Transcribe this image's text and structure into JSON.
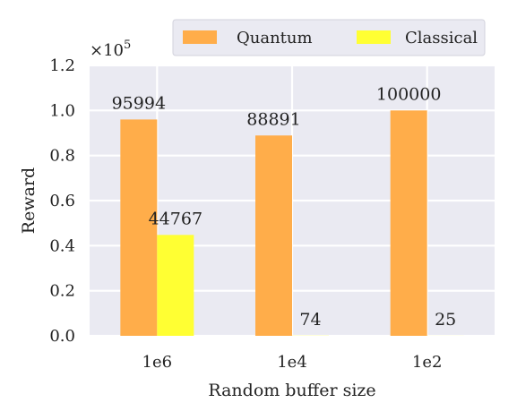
{
  "chart_data": {
    "type": "bar",
    "categories": [
      "1e6",
      "1e4",
      "1e2"
    ],
    "series": [
      {
        "name": "Quantum",
        "values": [
          95994,
          88891,
          100000
        ],
        "color": "#ffad4a"
      },
      {
        "name": "Classical",
        "values": [
          44767,
          74,
          25
        ],
        "color": "#ffff33"
      }
    ],
    "data_labels": [
      [
        "95994",
        "88891",
        "100000"
      ],
      [
        "44767",
        "74",
        "25"
      ]
    ],
    "xlabel": "Random buffer size",
    "ylabel": "Reward",
    "ylim": [
      0,
      120000
    ],
    "yticks": [
      0,
      20000,
      40000,
      60000,
      80000,
      100000,
      120000
    ],
    "ytick_labels": [
      "0.0",
      "0.2",
      "0.4",
      "0.6",
      "0.8",
      "1.0",
      "1.2"
    ],
    "scale_factor_base": "×10",
    "scale_factor_exp": "5",
    "grid": true,
    "legend": "top-right",
    "background": "#eaeaf2"
  }
}
